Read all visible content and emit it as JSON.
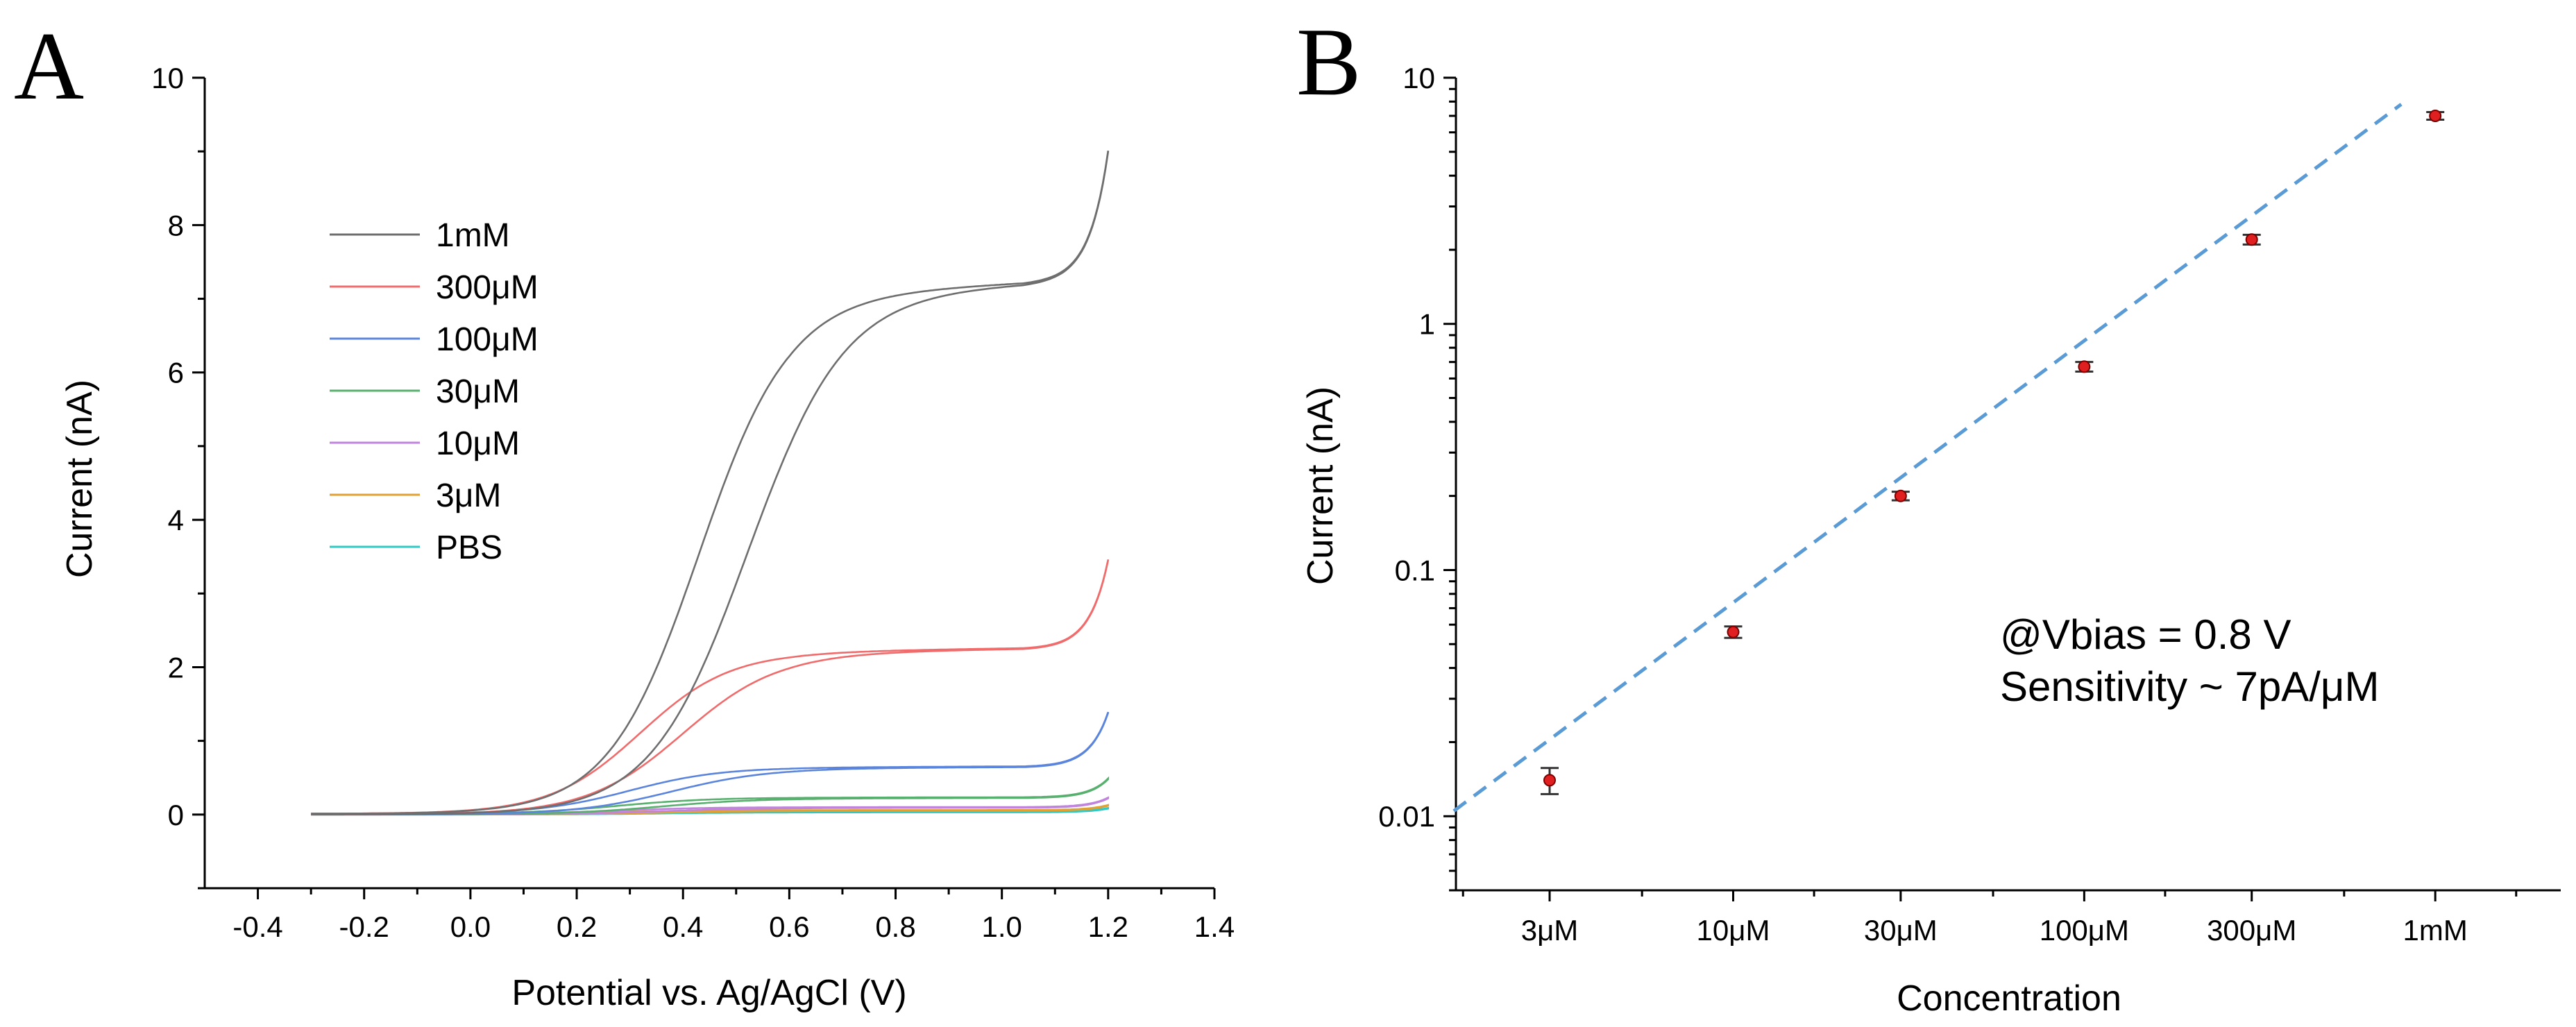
{
  "panel_a": {
    "letter": "A",
    "chart_data": {
      "type": "line",
      "title": "",
      "xlabel": "Potential vs. Ag/AgCl (V)",
      "ylabel": "Current (nA)",
      "xlim": [
        -0.5,
        1.4
      ],
      "ylim": [
        -1,
        10
      ],
      "x_ticks": [
        -0.4,
        -0.2,
        0.0,
        0.2,
        0.4,
        0.6,
        0.8,
        1.0,
        1.2,
        1.4
      ],
      "x_tick_labels": [
        "-0.4",
        "-0.2",
        "0.0",
        "0.2",
        "0.4",
        "0.6",
        "0.8",
        "1.0",
        "1.2",
        "1.4"
      ],
      "y_ticks": [
        0,
        2,
        4,
        6,
        8,
        10
      ],
      "y_tick_labels": [
        "0",
        "2",
        "4",
        "6",
        "8",
        "10"
      ],
      "legend_position": "upper-left",
      "series": [
        {
          "name": "1mM",
          "color": "#6e6e6e",
          "plateau": 7.05,
          "e_half_fwd": 0.43,
          "e_half_rev": 0.52,
          "end_value": 9.0
        },
        {
          "name": "300μM",
          "color": "#f06b6b",
          "plateau": 2.2,
          "e_half_fwd": 0.32,
          "e_half_rev": 0.4,
          "end_value": 3.45
        },
        {
          "name": "100μM",
          "color": "#5b85dc",
          "plateau": 0.63,
          "e_half_fwd": 0.3,
          "e_half_rev": 0.38,
          "end_value": 1.38
        },
        {
          "name": "30μM",
          "color": "#58b06e",
          "plateau": 0.22,
          "e_half_fwd": 0.28,
          "e_half_rev": 0.36,
          "end_value": 0.48
        },
        {
          "name": "10μM",
          "color": "#c084dc",
          "plateau": 0.09,
          "e_half_fwd": 0.28,
          "e_half_rev": 0.36,
          "end_value": 0.22
        },
        {
          "name": "3μM",
          "color": "#e0a235",
          "plateau": 0.05,
          "e_half_fwd": 0.28,
          "e_half_rev": 0.36,
          "end_value": 0.12
        },
        {
          "name": "PBS",
          "color": "#30c9c3",
          "plateau": 0.03,
          "e_half_fwd": 0.28,
          "e_half_rev": 0.36,
          "end_value": 0.08
        }
      ],
      "x_range_scanned": [
        -0.3,
        1.2
      ]
    }
  },
  "panel_b": {
    "letter": "B",
    "chart_data": {
      "type": "scatter",
      "title": "",
      "xlabel": "Concentration",
      "ylabel": "Current (nA)",
      "yscale": "log",
      "ylim": [
        0.005,
        10
      ],
      "y_ticks": [
        0.01,
        0.1,
        1,
        10
      ],
      "y_tick_labels": [
        "0.01",
        "0.1",
        "1",
        "10"
      ],
      "categories": [
        "3μM",
        "10μM",
        "30μM",
        "100μM",
        "300μM",
        "1mM"
      ],
      "concentration_uM": [
        3,
        10,
        30,
        100,
        300,
        1000
      ],
      "values": [
        0.014,
        0.056,
        0.2,
        0.67,
        2.2,
        7.0
      ],
      "error": [
        0.0017,
        0.003,
        0.008,
        0.03,
        0.1,
        0.25
      ],
      "marker_color": "#e02020",
      "fit_line": {
        "style": "dashed",
        "color": "#5a9bd5",
        "x_uM": [
          1.6,
          800
        ],
        "y_nA": [
          0.0105,
          7.8
        ]
      },
      "annotation_line1": "@Vbias = 0.8 V",
      "annotation_line2": "Sensitivity ~ 7pA/μM"
    }
  }
}
